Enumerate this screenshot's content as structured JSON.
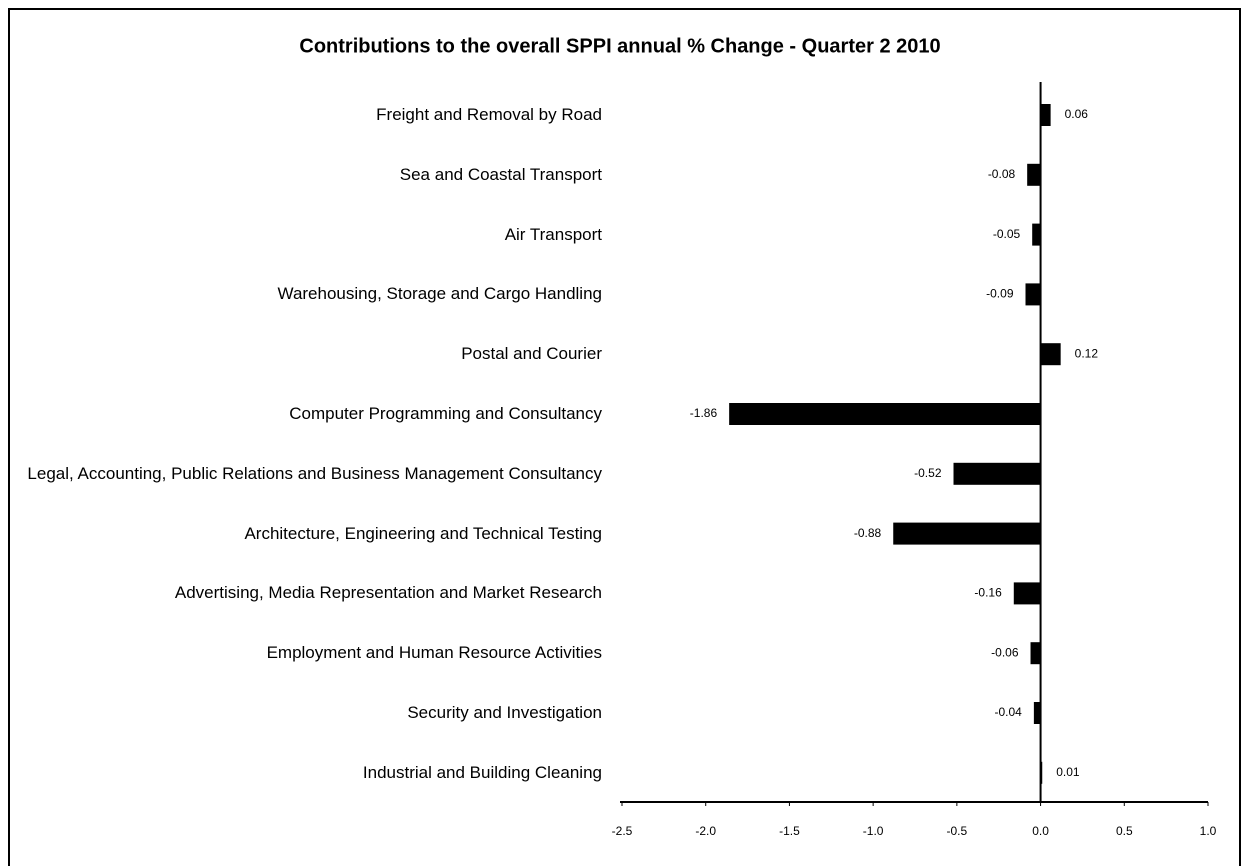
{
  "chart_data": {
    "type": "bar",
    "orientation": "horizontal",
    "title": "Contributions to the overall SPPI annual % Change - Quarter 2 2010",
    "categories": [
      "Freight and Removal by Road",
      "Sea and Coastal Transport",
      "Air Transport",
      "Warehousing, Storage and Cargo Handling",
      "Postal and Courier",
      "Computer Programming and Consultancy",
      "Legal, Accounting, Public Relations and Business Management Consultancy",
      "Architecture, Engineering and Technical Testing",
      "Advertising, Media Representation and Market Research",
      "Employment and Human Resource Activities",
      "Security and Investigation",
      "Industrial and Building Cleaning"
    ],
    "values": [
      0.06,
      -0.08,
      -0.05,
      -0.09,
      0.12,
      -1.86,
      -0.52,
      -0.88,
      -0.16,
      -0.06,
      -0.04,
      0.01
    ],
    "color": "#000000",
    "xlim": [
      -2.5,
      1.0
    ],
    "xticks": [
      -2.5,
      {
        "value": -2,
        "label": "-2.0"
      },
      -1.5,
      {
        "value": -1,
        "label": "-1.0"
      },
      -0.5,
      {
        "value": 0,
        "label": "0.0"
      },
      0.5,
      {
        "value": 1,
        "label": "1.0"
      }
    ]
  }
}
